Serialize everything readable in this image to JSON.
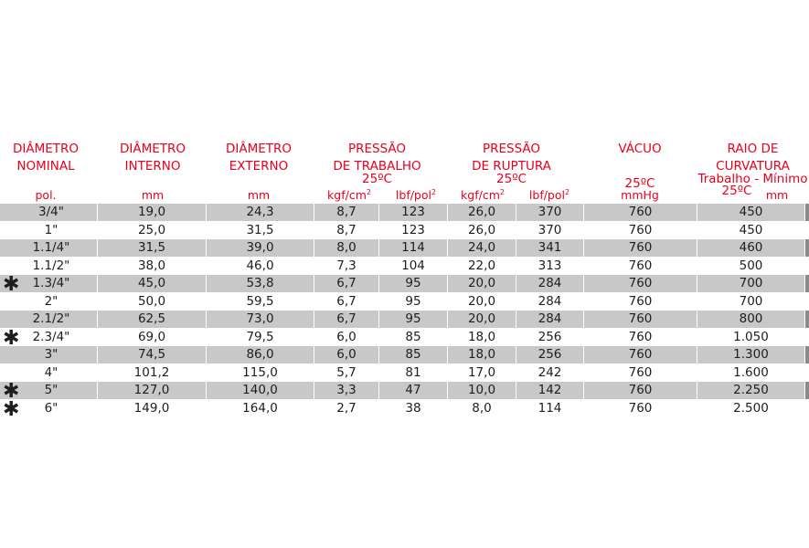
{
  "headers": {
    "diam_nominal": [
      "DIÂMETRO",
      "NOMINAL"
    ],
    "diam_interno": [
      "DIÂMETRO",
      "INTERNO"
    ],
    "diam_externo": [
      "DIÂMETRO",
      "EXTERNO"
    ],
    "pressao_trabalho": [
      "PRESSÃO",
      "DE TRABALHO",
      "25ºC"
    ],
    "pressao_ruptura": [
      "PRESSÃO",
      "DE RUPTURA",
      "25ºC"
    ],
    "vacuo": [
      "VÁCUO",
      "",
      "25ºC"
    ],
    "raio": [
      "RAIO DE",
      "CURVATURA",
      "Trabalho - Mínimo",
      "25ºC"
    ]
  },
  "units": {
    "pol": "pol.",
    "mm_int": "mm",
    "mm_ext": "mm",
    "kgf_trab": "kgf/cm",
    "lbf_trab": "lbf/pol",
    "kgf_rupt": "kgf/cm",
    "lbf_rupt": "lbf/pol",
    "mmhg": "mmHg",
    "mm_raio": "mm",
    "sup": "2"
  },
  "star_symbol": "✱",
  "rows": [
    {
      "star": false,
      "nominal": "3/4\"",
      "interno": "19,0",
      "externo": "24,3",
      "kgf_t": "8,7",
      "lbf_t": "123",
      "kgf_r": "26,0",
      "lbf_r": "370",
      "vacuo": "760",
      "raio": "450"
    },
    {
      "star": false,
      "nominal": "1\"",
      "interno": "25,0",
      "externo": "31,5",
      "kgf_t": "8,7",
      "lbf_t": "123",
      "kgf_r": "26,0",
      "lbf_r": "370",
      "vacuo": "760",
      "raio": "450"
    },
    {
      "star": false,
      "nominal": "1.1/4\"",
      "interno": "31,5",
      "externo": "39,0",
      "kgf_t": "8,0",
      "lbf_t": "114",
      "kgf_r": "24,0",
      "lbf_r": "341",
      "vacuo": "760",
      "raio": "460"
    },
    {
      "star": false,
      "nominal": "1.1/2\"",
      "interno": "38,0",
      "externo": "46,0",
      "kgf_t": "7,3",
      "lbf_t": "104",
      "kgf_r": "22,0",
      "lbf_r": "313",
      "vacuo": "760",
      "raio": "500"
    },
    {
      "star": true,
      "nominal": "1.3/4\"",
      "interno": "45,0",
      "externo": "53,8",
      "kgf_t": "6,7",
      "lbf_t": "95",
      "kgf_r": "20,0",
      "lbf_r": "284",
      "vacuo": "760",
      "raio": "700"
    },
    {
      "star": false,
      "nominal": "2\"",
      "interno": "50,0",
      "externo": "59,5",
      "kgf_t": "6,7",
      "lbf_t": "95",
      "kgf_r": "20,0",
      "lbf_r": "284",
      "vacuo": "760",
      "raio": "700"
    },
    {
      "star": false,
      "nominal": "2.1/2\"",
      "interno": "62,5",
      "externo": "73,0",
      "kgf_t": "6,7",
      "lbf_t": "95",
      "kgf_r": "20,0",
      "lbf_r": "284",
      "vacuo": "760",
      "raio": "800"
    },
    {
      "star": true,
      "nominal": "2.3/4\"",
      "interno": "69,0",
      "externo": "79,5",
      "kgf_t": "6,0",
      "lbf_t": "85",
      "kgf_r": "18,0",
      "lbf_r": "256",
      "vacuo": "760",
      "raio": "1.050"
    },
    {
      "star": false,
      "nominal": "3\"",
      "interno": "74,5",
      "externo": "86,0",
      "kgf_t": "6,0",
      "lbf_t": "85",
      "kgf_r": "18,0",
      "lbf_r": "256",
      "vacuo": "760",
      "raio": "1.300"
    },
    {
      "star": false,
      "nominal": "4\"",
      "interno": "101,2",
      "externo": "115,0",
      "kgf_t": "5,7",
      "lbf_t": "81",
      "kgf_r": "17,0",
      "lbf_r": "242",
      "vacuo": "760",
      "raio": "1.600"
    },
    {
      "star": true,
      "nominal": "5\"",
      "interno": "127,0",
      "externo": "140,0",
      "kgf_t": "3,3",
      "lbf_t": "47",
      "kgf_r": "10,0",
      "lbf_r": "142",
      "vacuo": "760",
      "raio": "2.250"
    },
    {
      "star": true,
      "nominal": "6\"",
      "interno": "149,0",
      "externo": "164,0",
      "kgf_t": "2,7",
      "lbf_t": "38",
      "kgf_r": "8,0",
      "lbf_r": "114",
      "vacuo": "760",
      "raio": "2.500"
    }
  ]
}
